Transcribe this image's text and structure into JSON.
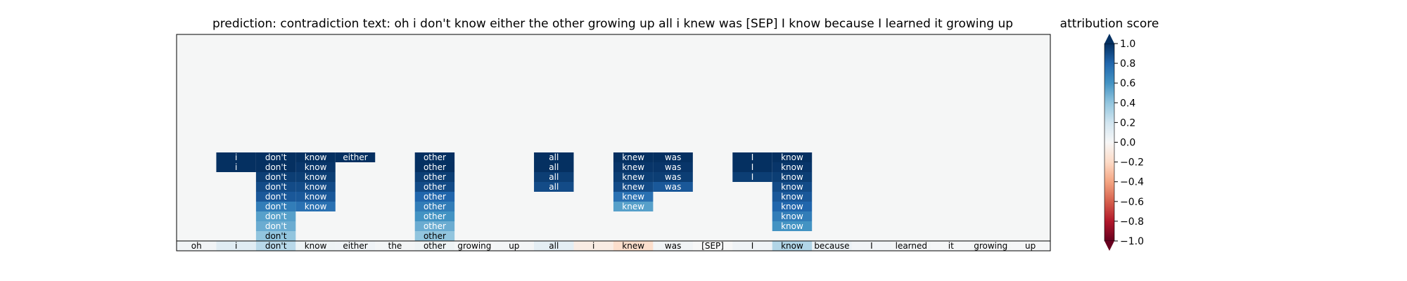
{
  "chart_data": {
    "type": "heatmap",
    "title": "prediction:  contradiction     text:  oh i don't know either the other growing up all i knew was [SEP] I know because I learned it growing up",
    "tokens": [
      "oh",
      "i",
      "don't",
      "know",
      "either",
      "the",
      "other",
      "growing",
      "up",
      "all",
      "i",
      "knew",
      "was",
      "[SEP]",
      "I",
      "know",
      "because",
      "I",
      "learned",
      "it",
      "growing",
      "up"
    ],
    "token_scores": [
      0.03,
      0.12,
      0.28,
      0.05,
      0.04,
      0.02,
      0.05,
      0.01,
      0.02,
      0.1,
      -0.08,
      -0.18,
      0.03,
      0.0,
      0.04,
      0.3,
      0.07,
      0.03,
      0.02,
      0.01,
      0.02,
      0.01
    ],
    "stacks": [
      {
        "index": 1,
        "word": "i",
        "values": [
          1.0,
          1.0
        ]
      },
      {
        "index": 2,
        "word": "don't",
        "values": [
          1.0,
          1.0,
          0.95,
          0.9,
          0.85,
          0.7,
          0.55,
          0.5,
          0.4
        ]
      },
      {
        "index": 3,
        "word": "know",
        "values": [
          1.0,
          0.98,
          0.95,
          0.9,
          0.85,
          0.75
        ]
      },
      {
        "index": 4,
        "word": "either",
        "values": [
          1.0
        ]
      },
      {
        "index": 6,
        "word": "other",
        "values": [
          1.0,
          1.0,
          0.95,
          0.9,
          0.8,
          0.7,
          0.6,
          0.5,
          0.4
        ]
      },
      {
        "index": 9,
        "word": "all",
        "values": [
          1.0,
          1.0,
          0.95,
          0.9
        ]
      },
      {
        "index": 11,
        "word": "knew",
        "values": [
          1.0,
          0.98,
          0.95,
          0.9,
          0.75,
          0.55
        ]
      },
      {
        "index": 12,
        "word": "was",
        "values": [
          1.0,
          0.98,
          0.95,
          0.85
        ]
      },
      {
        "index": 14,
        "word": "I",
        "values": [
          1.0,
          1.0,
          0.95
        ]
      },
      {
        "index": 15,
        "word": "know",
        "values": [
          1.0,
          0.98,
          0.95,
          0.9,
          0.85,
          0.8,
          0.7,
          0.6
        ]
      }
    ],
    "colorbar": {
      "label": "attribution score",
      "ticks": [
        "1.0",
        "0.8",
        "0.6",
        "0.4",
        "0.2",
        "0.0",
        "−0.2",
        "−0.4",
        "−0.6",
        "−0.8",
        "−1.0"
      ],
      "tick_values": [
        1.0,
        0.8,
        0.6,
        0.4,
        0.2,
        0.0,
        -0.2,
        -0.4,
        -0.6,
        -0.8,
        -1.0
      ],
      "vmin": -1.0,
      "vmax": 1.0,
      "colormap": "RdBu"
    }
  }
}
